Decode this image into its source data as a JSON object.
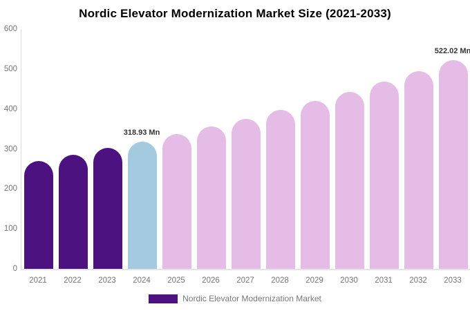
{
  "title": "Nordic Elevator Modernization Market Size (2021-2033)",
  "legend": {
    "label": "Nordic Elevator Modernization Market",
    "swatch_color": "#4c1280"
  },
  "colors": {
    "historical_bar": "#4c1280",
    "base_year_bar": "#a3cade",
    "forecast_bar": "#e4bce6",
    "axis_line": "#dcdcdc",
    "tick_text": "#757575",
    "value_label_text": "#333333"
  },
  "chart_data": {
    "type": "bar",
    "title": "Nordic Elevator Modernization Market Size (2021-2033)",
    "xlabel": "",
    "ylabel": "",
    "unit": "Mn",
    "categories": [
      "2021",
      "2022",
      "2023",
      "2024",
      "2025",
      "2026",
      "2027",
      "2028",
      "2029",
      "2030",
      "2031",
      "2032",
      "2033"
    ],
    "values": [
      270.6,
      285.8,
      301.9,
      318.93,
      336.9,
      355.9,
      375.9,
      397.1,
      419.5,
      443.1,
      468.1,
      494.4,
      522.02
    ],
    "bar_colors": [
      "#4c1280",
      "#4c1280",
      "#4c1280",
      "#a3cade",
      "#e4bce6",
      "#e4bce6",
      "#e4bce6",
      "#e4bce6",
      "#e4bce6",
      "#e4bce6",
      "#e4bce6",
      "#e4bce6",
      "#e4bce6"
    ],
    "data_labels": [
      {
        "category": "2024",
        "text": "318.93 Mn"
      },
      {
        "category": "2033",
        "text": "522.02 Mn"
      }
    ],
    "ylim": [
      0,
      600
    ],
    "yticks": [
      0,
      100,
      200,
      300,
      400,
      500,
      600
    ],
    "grid": false,
    "legend_position": "bottom",
    "legend_entries": [
      "Nordic Elevator Modernization Market"
    ]
  }
}
